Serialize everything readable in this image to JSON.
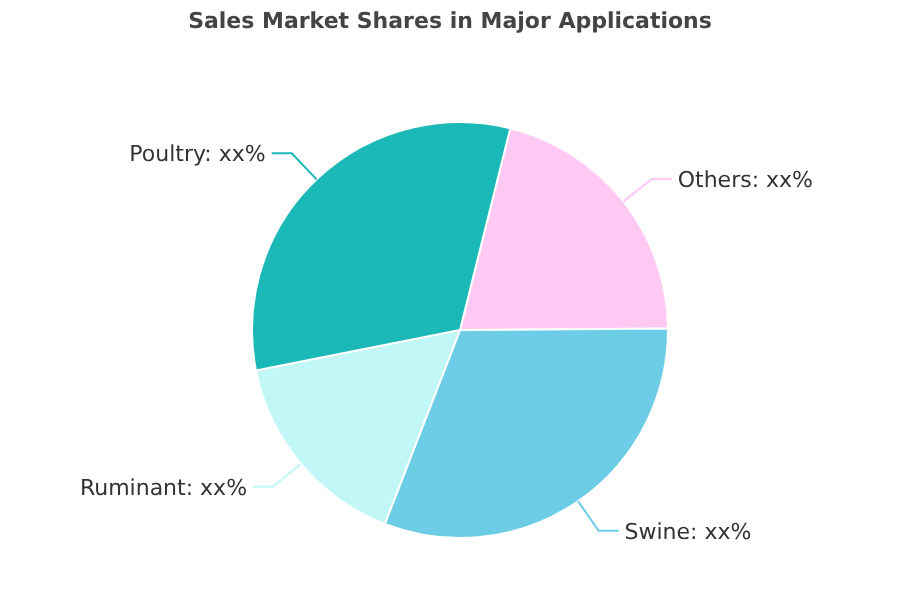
{
  "chart_data": {
    "type": "pie",
    "title": "Sales Market Shares in Major Applications",
    "categories": [
      "Others",
      "Swine",
      "Ruminant",
      "Poultry"
    ],
    "values": [
      21,
      31,
      16,
      32
    ],
    "value_labels": [
      "xx%",
      "xx%",
      "xx%",
      "xx%"
    ],
    "colors": [
      "#ffc9f3",
      "#6dcde6",
      "#c2f7f7",
      "#1bb8b8"
    ]
  }
}
